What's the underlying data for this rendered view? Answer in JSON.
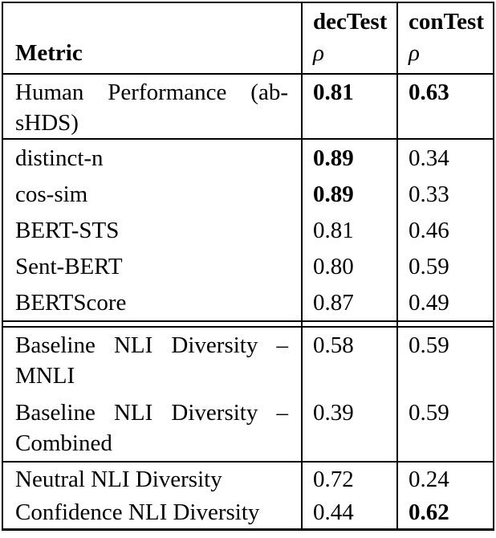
{
  "table": {
    "header": {
      "metric_label": "Metric",
      "col1_label": "decTest",
      "col2_label": "conTest",
      "col1_sub": "ρ",
      "col2_sub": "ρ"
    },
    "rows": [
      {
        "lines": [
          "Human Performance (ab-",
          "sHDS)"
        ],
        "dec": "0.81",
        "dec_bold": true,
        "con": "0.63",
        "con_bold": true
      },
      {
        "lines": [
          "distinct-n"
        ],
        "dec": "0.89",
        "dec_bold": true,
        "con": "0.34",
        "con_bold": false
      },
      {
        "lines": [
          "cos-sim"
        ],
        "dec": "0.89",
        "dec_bold": true,
        "con": "0.33",
        "con_bold": false
      },
      {
        "lines": [
          "BERT-STS"
        ],
        "dec": "0.81",
        "dec_bold": false,
        "con": "0.46",
        "con_bold": false
      },
      {
        "lines": [
          "Sent-BERT"
        ],
        "dec": "0.80",
        "dec_bold": false,
        "con": "0.59",
        "con_bold": false
      },
      {
        "lines": [
          "BERTScore"
        ],
        "dec": "0.87",
        "dec_bold": false,
        "con": "0.49",
        "con_bold": false
      },
      {
        "lines": [
          "Baseline NLI Diversity –",
          "MNLI"
        ],
        "dec": "0.58",
        "dec_bold": false,
        "con": "0.59",
        "con_bold": false
      },
      {
        "lines": [
          "Baseline NLI Diversity –",
          "Combined"
        ],
        "dec": "0.39",
        "dec_bold": false,
        "con": "0.59",
        "con_bold": false
      },
      {
        "lines": [
          "Neutral NLI Diversity"
        ],
        "dec": "0.72",
        "dec_bold": false,
        "con": "0.24",
        "con_bold": false
      },
      {
        "lines": [
          "Confidence NLI Diversity"
        ],
        "dec": "0.44",
        "dec_bold": false,
        "con": "0.62",
        "con_bold": true
      }
    ],
    "colors": {
      "border": "#000000",
      "text": "#000000",
      "background": "#ffffff"
    }
  }
}
